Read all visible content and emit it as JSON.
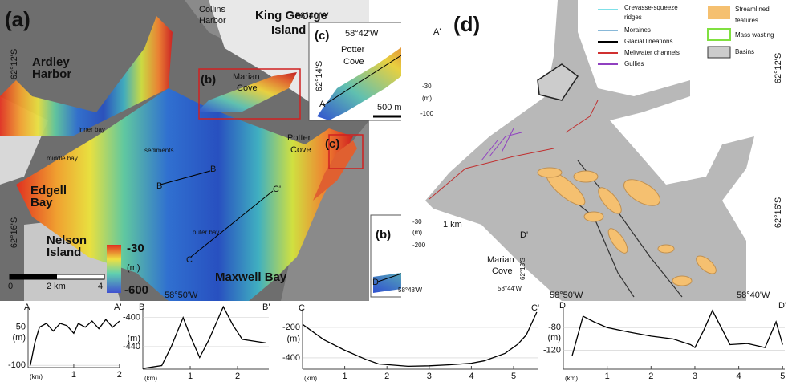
{
  "panel_a": {
    "label": "(a)",
    "texts": [
      "Collins",
      "Harbor",
      "King George",
      "Island",
      "58°40'W",
      "62°12'S",
      "Ardley",
      "Harbor",
      "(b)",
      "Marian",
      "Cove",
      "inner bay",
      "middle bay",
      "sediments",
      "B",
      "B'",
      "C",
      "C'",
      "Potter",
      "Cove",
      "(c)",
      "Edgell",
      "Bay",
      "62°16'S",
      "Nelson",
      "Island",
      "outer bay",
      "58°50'W",
      "Maxwell Bay"
    ],
    "colorbar": {
      "top": -30,
      "unit": "(m)",
      "bottom": -600
    },
    "scale_bar": {
      "start": 0,
      "mid": "2 km",
      "end": 4
    }
  },
  "inset_c": {
    "texts": [
      "(c)",
      "58°42'W",
      "A'",
      "Potter",
      "Cove",
      "62°14'S",
      "A",
      "500 m"
    ],
    "colorbar": {
      "top": -30,
      "unit": "(m)",
      "bottom": -100
    }
  },
  "inset_b": {
    "texts": [
      "(b)",
      "1 km",
      "D'",
      "Marian",
      "Cove",
      "62°13'S",
      "D",
      "58°48'W",
      "58°44'W"
    ],
    "colorbar": {
      "top": -30,
      "unit": "(m)",
      "bottom": -200
    }
  },
  "panel_d": {
    "label": "(d)",
    "legend": [
      "Crevasse-squeeze",
      "ridges",
      "Moraines",
      "Glacial lineations",
      "Meltwater channels",
      "Gullies",
      "Streamlined",
      "features",
      "Mass wasting",
      "Basins"
    ],
    "texts": [
      "62°12'S",
      "62°16'S",
      "58°50'W",
      "58°40'W"
    ]
  },
  "profiles": [
    {
      "type": "line",
      "start": "A",
      "end": "A'",
      "ylabel": "(m)",
      "xlabel": "(km)",
      "xlim": [
        0,
        2.02
      ],
      "ylim": [
        -103,
        -25
      ],
      "xticks": [
        1,
        2
      ],
      "yticks": [
        -50,
        -100
      ],
      "x": [
        0.05,
        0.15,
        0.25,
        0.4,
        0.55,
        0.7,
        0.85,
        1.0,
        1.1,
        1.25,
        1.4,
        1.55,
        1.7,
        1.85,
        2.0
      ],
      "values": [
        -100,
        -70,
        -50,
        -45,
        -55,
        -45,
        -48,
        -58,
        -45,
        -50,
        -42,
        -52,
        -40,
        -50,
        -42
      ]
    },
    {
      "type": "line",
      "start": "B",
      "end": "B'",
      "ylabel": "(m)",
      "xlabel": "(km)",
      "xlim": [
        0,
        2.66
      ],
      "ylim": [
        -471,
        -387
      ],
      "xticks": [
        1,
        2
      ],
      "yticks": [
        -400,
        -440
      ],
      "x": [
        0,
        0.2,
        0.4,
        0.6,
        0.85,
        1.0,
        1.2,
        1.4,
        1.7,
        1.9,
        2.1,
        2.4,
        2.6
      ],
      "values": [
        -470,
        -468,
        -466,
        -440,
        -400,
        -425,
        -455,
        -430,
        -385,
        -410,
        -430,
        -433,
        -435
      ]
    },
    {
      "type": "line",
      "start": "C",
      "end": "C'",
      "ylabel": "(m)",
      "xlabel": "(km)",
      "xlim": [
        0,
        5.57
      ],
      "ylim": [
        -474,
        -79
      ],
      "xticks": [
        1,
        2,
        3,
        4,
        5
      ],
      "yticks": [
        -200,
        -400
      ],
      "x": [
        0,
        0.5,
        1.0,
        1.5,
        1.8,
        2.5,
        3.0,
        3.5,
        4.0,
        4.3,
        4.8,
        5.1,
        5.3,
        5.55
      ],
      "values": [
        -180,
        -280,
        -350,
        -410,
        -440,
        -455,
        -452,
        -445,
        -435,
        -420,
        -370,
        -310,
        -250,
        -100
      ]
    },
    {
      "type": "line",
      "start": "D",
      "end": "D'",
      "ylabel": "(m)",
      "xlabel": "(km)",
      "xlim": [
        0,
        5.05
      ],
      "ylim": [
        -153,
        -43
      ],
      "xticks": [
        1,
        2,
        3,
        4,
        5
      ],
      "yticks": [
        -80,
        -120
      ],
      "x": [
        0.2,
        0.45,
        0.7,
        1.0,
        1.5,
        2.0,
        2.5,
        2.9,
        3.0,
        3.2,
        3.4,
        3.6,
        3.8,
        4.2,
        4.6,
        4.85,
        5.0
      ],
      "values": [
        -130,
        -60,
        -70,
        -80,
        -88,
        -95,
        -100,
        -110,
        -115,
        -85,
        -50,
        -80,
        -110,
        -108,
        -115,
        -70,
        -110
      ]
    }
  ]
}
